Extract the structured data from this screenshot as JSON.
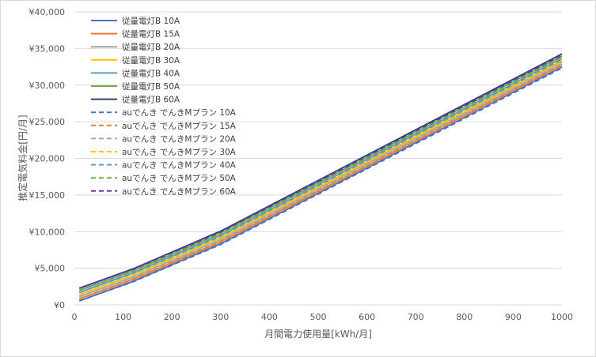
{
  "chart_data": {
    "type": "line",
    "title": "",
    "xlabel": "月間電力使用量[kWh/月]",
    "ylabel": "推定電気料金[円/月]",
    "xlim": [
      0,
      1000
    ],
    "ylim": [
      0,
      40000
    ],
    "x_ticks": [
      "0",
      "100",
      "200",
      "300",
      "400",
      "500",
      "600",
      "700",
      "800",
      "900",
      "1000"
    ],
    "y_ticks": [
      "¥0",
      "¥5,000",
      "¥10,000",
      "¥15,000",
      "¥20,000",
      "¥25,000",
      "¥30,000",
      "¥35,000",
      "¥40,000"
    ],
    "grid": "horizontal",
    "legend_position": "top-left",
    "x": [
      10,
      120,
      300,
      1000
    ],
    "series": [
      {
        "name": "従量電灯B 10A",
        "color": "#4472C4",
        "dash": false,
        "values": [
          550,
          3200,
          8350,
          32500
        ]
      },
      {
        "name": "従量電灯B 15A",
        "color": "#ED7D31",
        "dash": false,
        "values": [
          830,
          3480,
          8630,
          32800
        ]
      },
      {
        "name": "従量電灯B 20A",
        "color": "#A5A5A5",
        "dash": false,
        "values": [
          1120,
          3770,
          8920,
          33100
        ]
      },
      {
        "name": "従量電灯B 30A",
        "color": "#FFC000",
        "dash": false,
        "values": [
          1400,
          4050,
          9200,
          33350
        ]
      },
      {
        "name": "従量電灯B 40A",
        "color": "#5B9BD5",
        "dash": false,
        "values": [
          1690,
          4340,
          9490,
          33650
        ]
      },
      {
        "name": "従量電灯B 50A",
        "color": "#70AD47",
        "dash": false,
        "values": [
          1970,
          4620,
          9770,
          33950
        ]
      },
      {
        "name": "従量電灯B 60A",
        "color": "#264478",
        "dash": false,
        "values": [
          2260,
          4910,
          10060,
          34250
        ]
      },
      {
        "name": "auでんき でんきMプラン 10A",
        "color": "#4472C4",
        "dash": true,
        "values": [
          550,
          3150,
          8250,
          32350
        ]
      },
      {
        "name": "auでんき でんきMプラン 15A",
        "color": "#ED7D31",
        "dash": true,
        "values": [
          830,
          3430,
          8530,
          32650
        ]
      },
      {
        "name": "auでんき でんきMプラン 20A",
        "color": "#A5A5A5",
        "dash": true,
        "values": [
          1120,
          3720,
          8820,
          32950
        ]
      },
      {
        "name": "auでんき でんきMプラン 30A",
        "color": "#FFC000",
        "dash": true,
        "values": [
          1400,
          4000,
          9100,
          33200
        ]
      },
      {
        "name": "auでんき でんきMプラン 40A",
        "color": "#5B9BD5",
        "dash": true,
        "values": [
          1690,
          4290,
          9390,
          33500
        ]
      },
      {
        "name": "auでんき でんきMプラン 50A",
        "color": "#70AD47",
        "dash": true,
        "values": [
          1970,
          4570,
          9670,
          33800
        ]
      },
      {
        "name": "auでんき でんきMプラン 60A",
        "color": "#7030A0",
        "dash": true,
        "values": [
          2260,
          4860,
          9960,
          34100
        ]
      }
    ]
  }
}
